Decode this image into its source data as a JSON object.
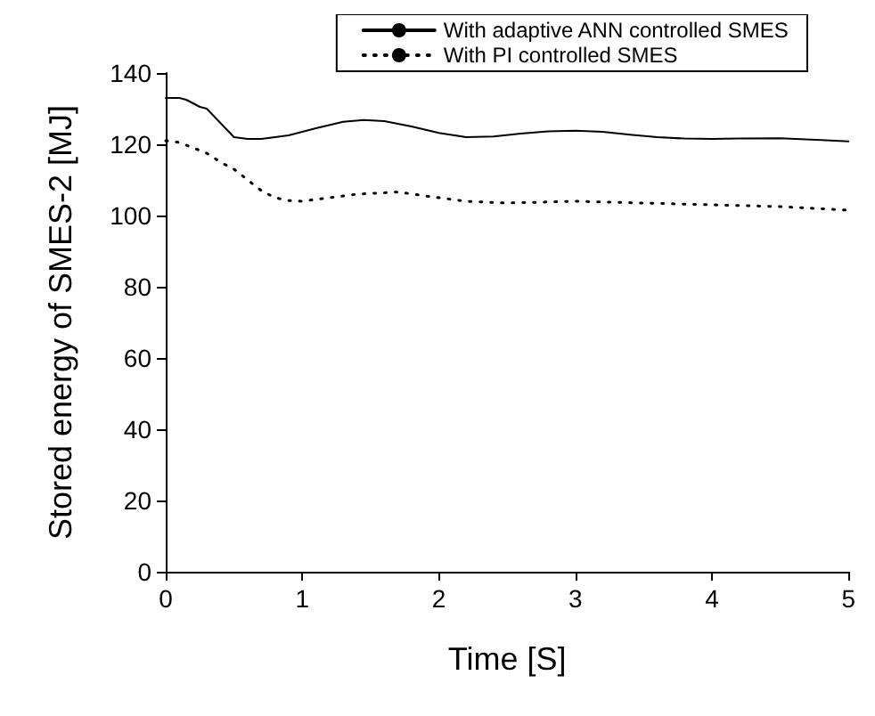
{
  "chart_data": {
    "type": "line",
    "xlabel": "Time [S]",
    "ylabel": "Stored energy of SMES-2 [MJ]",
    "xlim": [
      0,
      5
    ],
    "xticks": [
      0,
      1,
      2,
      3,
      4,
      5
    ],
    "ylim": [
      0,
      140
    ],
    "yticks": [
      0,
      20,
      40,
      60,
      80,
      100,
      120,
      140
    ],
    "grid": false,
    "legend": "top right",
    "marker": "none",
    "series": [
      {
        "name": "With adaptive ANN controlled SMES",
        "color": "#000000",
        "line_style": "solid",
        "x": [
          0,
          0.1,
          0.15,
          0.25,
          0.3,
          0.4,
          0.5,
          0.6,
          0.7,
          0.9,
          1.1,
          1.3,
          1.45,
          1.6,
          1.8,
          2.0,
          2.2,
          2.4,
          2.6,
          2.8,
          3.0,
          3.2,
          3.4,
          3.6,
          3.8,
          4.0,
          4.2,
          4.5,
          4.8,
          5.0
        ],
        "values": [
          133,
          133,
          132.5,
          130.5,
          130,
          126,
          122,
          121.5,
          121.5,
          122.5,
          124.5,
          126.3,
          126.8,
          126.5,
          125,
          123.2,
          122,
          122.2,
          123,
          123.6,
          123.8,
          123.5,
          122.7,
          122,
          121.6,
          121.5,
          121.6,
          121.7,
          121.2,
          120.8
        ]
      },
      {
        "name": "With PI controlled SMES",
        "color": "#000000",
        "line_style": "dotted",
        "x": [
          0,
          0.1,
          0.2,
          0.3,
          0.4,
          0.5,
          0.6,
          0.7,
          0.8,
          0.9,
          1.0,
          1.2,
          1.4,
          1.7,
          2.0,
          2.2,
          2.5,
          3.0,
          3.5,
          4.0,
          4.5,
          5.0
        ],
        "values": [
          121,
          120.5,
          119,
          117.5,
          115,
          113,
          110,
          107,
          105,
          104.2,
          104,
          105,
          106,
          106.6,
          105,
          104,
          103.5,
          104,
          103.5,
          103,
          102.5,
          101.5
        ]
      }
    ]
  }
}
